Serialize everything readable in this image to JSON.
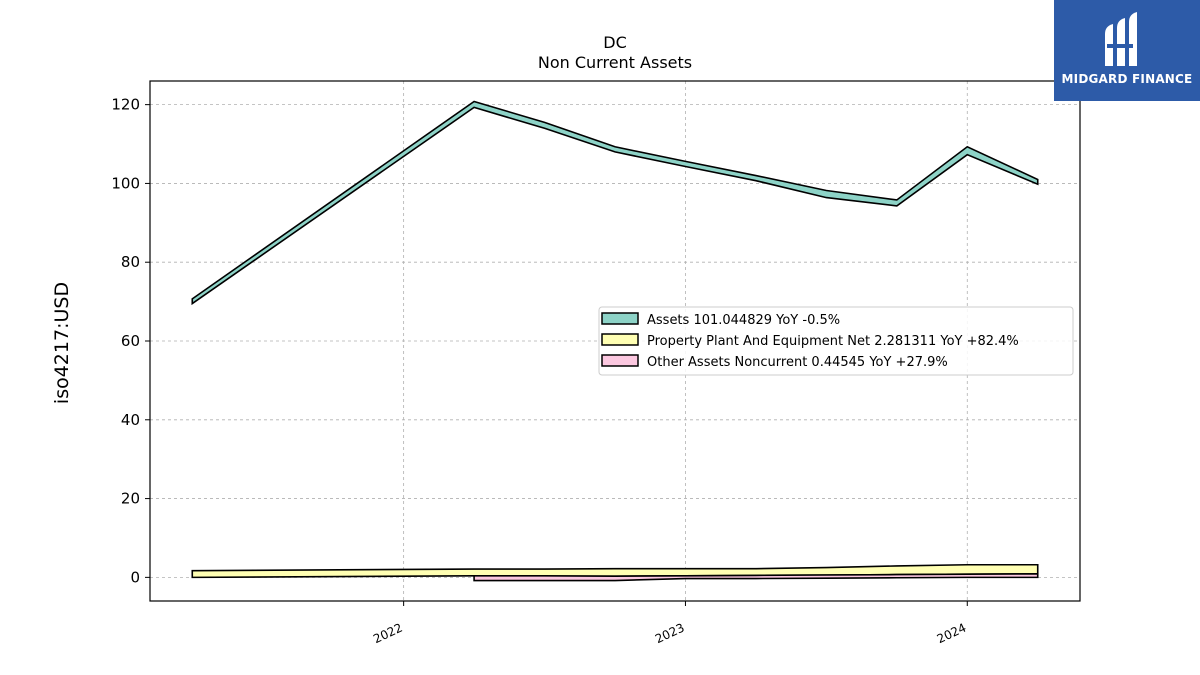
{
  "logo": {
    "text": "MIDGARD FINANCE",
    "icon": "midgard-logo-icon",
    "background": "#2d5ba8"
  },
  "chart_data": {
    "type": "area",
    "title": "DC",
    "subtitle": "Non Current  Assets",
    "xlabel": "",
    "ylabel": "iso4217:USD",
    "ylim": [
      -6,
      126
    ],
    "xlim": [
      2021.1,
      2024.4
    ],
    "yticks": [
      0,
      20,
      40,
      60,
      80,
      100,
      120
    ],
    "xticks": [
      2022,
      2023,
      2024
    ],
    "xtick_labels": [
      "2022",
      "2023",
      "2024"
    ],
    "grid": true,
    "legend_position": "center-right",
    "series": [
      {
        "name": "Assets",
        "legend_label": "Assets  101.044829 YoY -0.5%",
        "color": "#8dd3c7",
        "x": [
          2021.25,
          2022.25,
          2022.5,
          2022.75,
          2023.0,
          2023.25,
          2023.5,
          2023.75,
          2024.0,
          2024.25
        ],
        "y_upper": [
          70.7,
          120.8,
          115.5,
          109.3,
          105.6,
          102.0,
          98.2,
          95.8,
          109.3,
          101.0
        ],
        "y_lower": [
          69.5,
          119.3,
          114.0,
          108.0,
          104.3,
          100.7,
          96.4,
          94.3,
          107.3,
          99.8
        ]
      },
      {
        "name": "Property Plant And Equipment Net",
        "legend_label": "Property Plant And Equipment Net  2.281311 YoY +82.4%",
        "color": "#ffffb3",
        "x": [
          2021.25,
          2022.25,
          2022.5,
          2022.75,
          2023.0,
          2023.25,
          2023.5,
          2023.75,
          2024.0,
          2024.25
        ],
        "y_upper": [
          1.7,
          2.1,
          2.1,
          2.2,
          2.2,
          2.2,
          2.5,
          2.9,
          3.2,
          3.2
        ],
        "y_lower": [
          0.0,
          0.4,
          0.3,
          0.3,
          0.4,
          0.5,
          0.6,
          0.7,
          0.8,
          0.9
        ]
      },
      {
        "name": "Other Assets Noncurrent",
        "legend_label": "Other Assets Noncurrent  0.44545 YoY +27.9%",
        "color": "#fcc8e0",
        "x": [
          2022.25,
          2022.5,
          2022.75,
          2023.0,
          2023.25,
          2023.5,
          2023.75,
          2024.0,
          2024.25
        ],
        "y_upper": [
          0.4,
          0.4,
          0.3,
          0.4,
          0.5,
          0.6,
          0.7,
          0.8,
          0.9
        ],
        "y_lower": [
          -0.8,
          -0.8,
          -0.8,
          -0.3,
          -0.3,
          -0.2,
          -0.1,
          0.0,
          0.0
        ]
      }
    ]
  }
}
